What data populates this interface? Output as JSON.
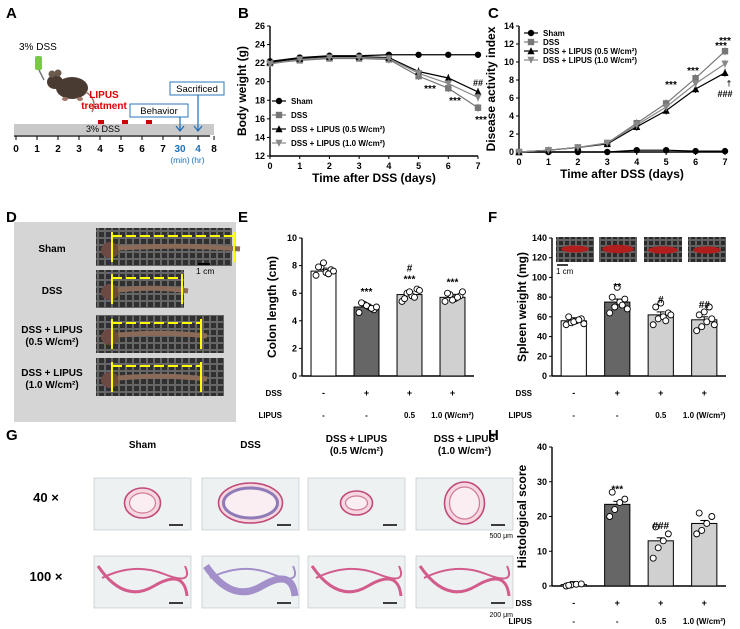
{
  "panel_labels": [
    "A",
    "B",
    "C",
    "D",
    "E",
    "F",
    "G",
    "H"
  ],
  "colors": {
    "sham": "#000000",
    "dss": "#777777",
    "lipus05": "#000000",
    "lipus10": "#888888",
    "dark_bar": "#666666",
    "light_bar": "#d0d0d0",
    "ruler": "#ffff00",
    "board": "#333333",
    "lipus_text": "#dd0000",
    "timeline_blue": "#1f6fb5"
  },
  "panelA": {
    "dss_label": "3% DSS",
    "dss_bar_label": "3% DSS",
    "lipus_label": "LIPUS\ntreatment",
    "behavior": "Behavior",
    "sacrificed": "Sacrificed",
    "ticks": [
      "0",
      "1",
      "2",
      "3",
      "4",
      "5",
      "6",
      "7",
      "30",
      "4",
      "8"
    ],
    "units": [
      "(min)",
      "(hr)"
    ]
  },
  "panelD": {
    "rows": [
      "Sham",
      "DSS",
      "DSS + LIPUS\n(0.5 W/cm²)",
      "DSS + LIPUS\n(1.0 W/cm²)"
    ],
    "scale": "1 cm"
  },
  "panelF_scale": "1 cm",
  "panelG": {
    "columns": [
      "Sham",
      "DSS",
      "DSS + LIPUS\n(0.5 W/cm²)",
      "DSS + LIPUS\n(1.0 W/cm²)"
    ],
    "rows": [
      "40 ×",
      "100 ×"
    ],
    "scales": [
      "500 μm",
      "200 μm"
    ]
  },
  "chart_data": [
    {
      "panel": "B",
      "type": "line",
      "xlabel": "Time after DSS (days)",
      "ylabel": "Body weight (g)",
      "x": [
        0,
        1,
        2,
        3,
        4,
        5,
        6,
        7
      ],
      "xlim": [
        0,
        7
      ],
      "ylim": [
        12,
        26
      ],
      "yticks": [
        12,
        14,
        16,
        18,
        20,
        22,
        24,
        26
      ],
      "series": [
        {
          "name": "Sham",
          "marker": "circle",
          "values": [
            22.2,
            22.6,
            22.8,
            22.8,
            22.9,
            22.9,
            22.9,
            22.9
          ]
        },
        {
          "name": "DSS",
          "marker": "square",
          "values": [
            22.0,
            22.3,
            22.5,
            22.5,
            22.4,
            20.6,
            19.3,
            17.2
          ]
        },
        {
          "name": "DSS + LIPUS (0.5 W/cm²)",
          "marker": "triangle-up",
          "values": [
            22.1,
            22.5,
            22.7,
            22.7,
            22.6,
            21.1,
            20.4,
            18.9
          ]
        },
        {
          "name": "DSS + LIPUS (1.0 W/cm²)",
          "marker": "triangle-down",
          "values": [
            21.9,
            22.4,
            22.6,
            22.6,
            22.5,
            20.9,
            19.8,
            18.3
          ]
        }
      ],
      "annotations": [
        "***",
        "***",
        "##",
        "***"
      ]
    },
    {
      "panel": "C",
      "type": "line",
      "xlabel": "Time after DSS (days)",
      "ylabel": "Disease activity index",
      "x": [
        0,
        1,
        2,
        3,
        4,
        5,
        6,
        7
      ],
      "xlim": [
        0,
        7
      ],
      "ylim": [
        0,
        14
      ],
      "yticks": [
        0,
        2,
        4,
        6,
        8,
        10,
        12,
        14
      ],
      "series": [
        {
          "name": "Sham",
          "marker": "circle",
          "values": [
            0,
            0,
            0,
            0,
            0.2,
            0.2,
            0.1,
            0.1
          ]
        },
        {
          "name": "DSS",
          "marker": "square",
          "values": [
            0,
            0.2,
            0.5,
            1.0,
            3.2,
            5.4,
            8.2,
            11.2
          ]
        },
        {
          "name": "DSS + LIPUS (0.5 W/cm²)",
          "marker": "triangle-up",
          "values": [
            0,
            0.2,
            0.5,
            0.9,
            2.8,
            4.6,
            7.0,
            8.8
          ]
        },
        {
          "name": "DSS + LIPUS (1.0 W/cm²)",
          "marker": "triangle-down",
          "values": [
            0,
            0.2,
            0.5,
            1.0,
            3.0,
            5.0,
            7.6,
            9.8
          ]
        }
      ],
      "annotations": [
        "***",
        "***",
        "***",
        "***",
        "†",
        "###"
      ]
    },
    {
      "panel": "E",
      "type": "bar",
      "ylabel": "Colon length (cm)",
      "ylim": [
        0,
        10
      ],
      "yticks": [
        0,
        2,
        4,
        6,
        8,
        10
      ],
      "categories": [
        "1",
        "2",
        "3",
        "4"
      ],
      "values": [
        7.6,
        5.0,
        5.9,
        5.7
      ],
      "dots": [
        [
          7.3,
          7.9,
          7.5,
          7.7,
          7.9,
          8.2,
          7.4,
          7.6
        ],
        [
          4.6,
          5.2,
          5.0,
          4.8,
          5.3,
          5.1,
          4.9,
          5.0
        ],
        [
          5.4,
          6.0,
          5.8,
          6.3,
          5.6,
          6.1,
          5.7,
          6.2
        ],
        [
          5.4,
          5.9,
          5.6,
          5.8,
          6.0,
          5.5,
          5.7,
          6.1
        ]
      ],
      "dss_row": [
        "-",
        "+",
        "+",
        "+"
      ],
      "lipus_row": [
        "-",
        "-",
        "0.5",
        "1.0 (W/cm²)"
      ],
      "row_labels": [
        "DSS",
        "LIPUS"
      ],
      "sig": [
        "",
        "***",
        "#\n***",
        "***"
      ]
    },
    {
      "panel": "F",
      "type": "bar",
      "ylabel": "Spleen weight (mg)",
      "ylim": [
        0,
        140
      ],
      "yticks": [
        0,
        20,
        40,
        60,
        80,
        100,
        120,
        140
      ],
      "categories": [
        "1",
        "2",
        "3",
        "4"
      ],
      "values": [
        56,
        75,
        62,
        57
      ],
      "dots": [
        [
          52,
          54,
          56,
          58,
          60,
          55,
          57,
          53
        ],
        [
          64,
          70,
          75,
          78,
          80,
          90,
          72,
          68
        ],
        [
          52,
          58,
          60,
          64,
          70,
          74,
          56,
          62
        ],
        [
          46,
          50,
          55,
          58,
          62,
          65,
          70,
          52
        ]
      ],
      "dss_row": [
        "-",
        "+",
        "+",
        "+"
      ],
      "lipus_row": [
        "-",
        "-",
        "0.5",
        "1.0 (W/cm²)"
      ],
      "row_labels": [
        "DSS",
        "LIPUS"
      ],
      "sig": [
        "",
        "**",
        "#",
        "##"
      ]
    },
    {
      "panel": "H",
      "type": "bar",
      "ylabel": "Histological score",
      "ylim": [
        0,
        40
      ],
      "yticks": [
        0,
        10,
        20,
        30,
        40
      ],
      "categories": [
        "1",
        "2",
        "3",
        "4"
      ],
      "values": [
        0.4,
        23.5,
        13.0,
        18.0
      ],
      "dots": [
        [
          0,
          0.3,
          0.5,
          0.6,
          0.2
        ],
        [
          20,
          22,
          24,
          25,
          27
        ],
        [
          8,
          11,
          13,
          15,
          17
        ],
        [
          15,
          16,
          18,
          20,
          21
        ]
      ],
      "dss_row": [
        "-",
        "+",
        "+",
        "+"
      ],
      "lipus_row": [
        "-",
        "-",
        "0.5",
        "1.0 (W/cm²)"
      ],
      "row_labels": [
        "DSS",
        "LIPUS"
      ],
      "sig": [
        "",
        "***",
        "###",
        ""
      ]
    }
  ]
}
